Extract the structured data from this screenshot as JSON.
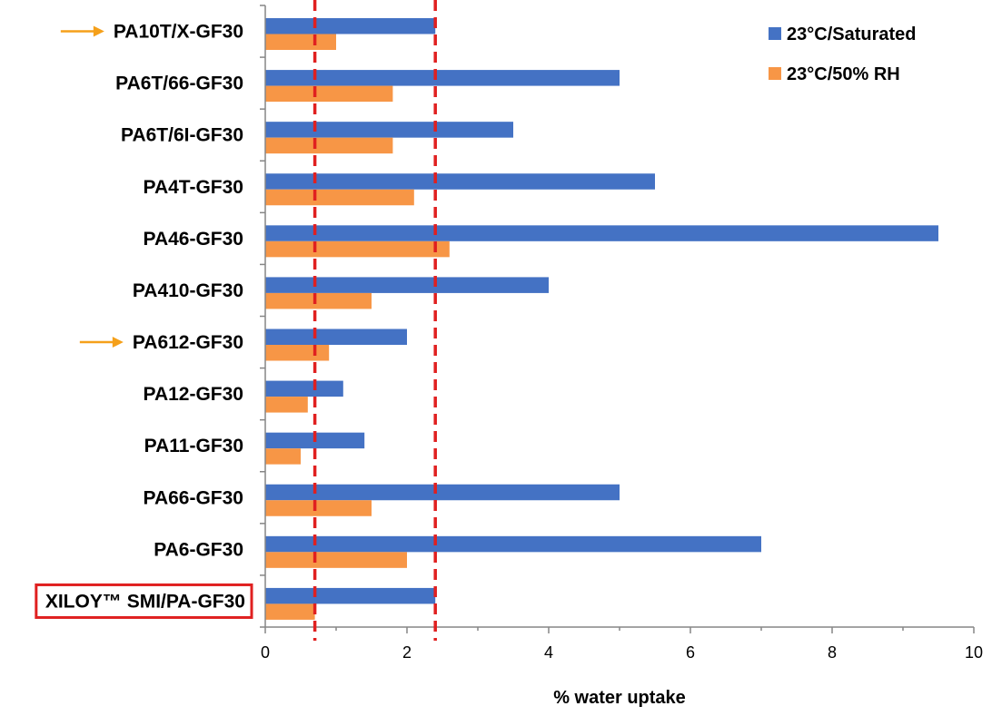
{
  "chart_data": {
    "type": "bar",
    "orientation": "horizontal",
    "categories": [
      "PA10T/X-GF30",
      "PA6T/66-GF30",
      "PA6T/6I-GF30",
      "PA4T-GF30",
      "PA46-GF30",
      "PA410-GF30",
      "PA612-GF30",
      "PA12-GF30",
      "PA11-GF30",
      "PA66-GF30",
      "PA6-GF30",
      "XILOY™ SMI/PA-GF30"
    ],
    "series": [
      {
        "name": "23°C/Saturated",
        "color": "#4472C4",
        "values": [
          2.4,
          5.0,
          3.5,
          5.5,
          9.5,
          4.0,
          2.0,
          1.1,
          1.4,
          5.0,
          7.0,
          2.4
        ]
      },
      {
        "name": "23°C/50% RH",
        "color": "#F79646",
        "values": [
          1.0,
          1.8,
          1.8,
          2.1,
          2.6,
          1.5,
          0.9,
          0.6,
          0.5,
          1.5,
          2.0,
          0.7
        ]
      }
    ],
    "xlabel": "% water uptake",
    "xlim": [
      0,
      10
    ],
    "xticks": [
      0,
      2,
      4,
      6,
      8,
      10
    ],
    "reference_lines_x": [
      0.7,
      2.4
    ],
    "reference_line_color": "#E02020",
    "highlighted_categories": [
      "PA10T/X-GF30",
      "PA612-GF30"
    ],
    "highlight_arrow_color": "#F5A01A",
    "boxed_category": "XILOY™ SMI/PA-GF30",
    "box_color": "#E02020",
    "legend_position": "top-right",
    "grid": false
  }
}
